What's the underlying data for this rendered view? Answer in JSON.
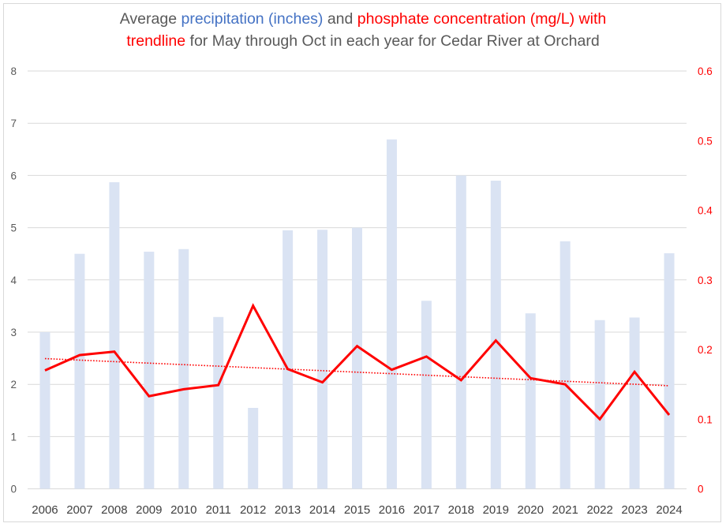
{
  "chart_data": {
    "type": "bar",
    "title_parts": [
      {
        "text": "Average ",
        "color": "gray"
      },
      {
        "text": "precipitation (inches)",
        "color": "blue"
      },
      {
        "text": " and ",
        "color": "gray"
      },
      {
        "text": "phosphate concentration (mg/L) with",
        "color": "red"
      },
      {
        "text": "\n",
        "color": "break"
      },
      {
        "text": "trendline",
        "color": "red"
      },
      {
        "text": " for May through Oct in each year for Cedar River at Orchard",
        "color": "gray"
      }
    ],
    "title": "Average precipitation (inches) and phosphate concentration (mg/L) with trendline for May through Oct in each year for Cedar River at Orchard",
    "categories": [
      "2006",
      "2007",
      "2008",
      "2009",
      "2010",
      "2011",
      "2012",
      "2013",
      "2014",
      "2015",
      "2016",
      "2017",
      "2018",
      "2019",
      "2020",
      "2021",
      "2022",
      "2023",
      "2024"
    ],
    "series": [
      {
        "name": "Average precipitation (inches)",
        "type": "bar",
        "axis": "left",
        "color": "#DAE3F3",
        "values": [
          3.0,
          4.5,
          5.87,
          4.54,
          4.59,
          3.29,
          1.55,
          4.95,
          4.96,
          5.0,
          6.69,
          3.6,
          6.0,
          5.9,
          3.36,
          4.74,
          3.23,
          3.28,
          4.51
        ]
      },
      {
        "name": "Phosphate concentration (mg/L)",
        "type": "line",
        "axis": "right",
        "color": "#FF0000",
        "values": [
          0.17,
          0.192,
          0.197,
          0.133,
          0.143,
          0.149,
          0.263,
          0.172,
          0.153,
          0.205,
          0.171,
          0.19,
          0.156,
          0.213,
          0.159,
          0.15,
          0.1,
          0.168,
          0.106
        ]
      },
      {
        "name": "Phosphate trendline (linear)",
        "type": "line",
        "style": "dotted",
        "axis": "right",
        "color": "#FF0000",
        "values": [
          0.187,
          0.148
        ],
        "x_range": [
          "2006",
          "2024"
        ]
      }
    ],
    "y_left": {
      "label": "",
      "ylim": [
        0,
        8
      ],
      "ticks": [
        "0",
        "1",
        "2",
        "3",
        "4",
        "5",
        "6",
        "7",
        "8"
      ]
    },
    "y_right": {
      "label": "",
      "ylim": [
        0,
        0.6
      ],
      "ticks": [
        "0",
        "0.1",
        "0.2",
        "0.3",
        "0.4",
        "0.5",
        "0.6"
      ]
    },
    "xlabel": "",
    "grid": true,
    "legend": "none",
    "colors": {
      "gray": "#595959",
      "blue": "#4472C4",
      "red": "#FF0000",
      "bar": "#DAE3F3",
      "grid": "#d9d9d9"
    }
  }
}
